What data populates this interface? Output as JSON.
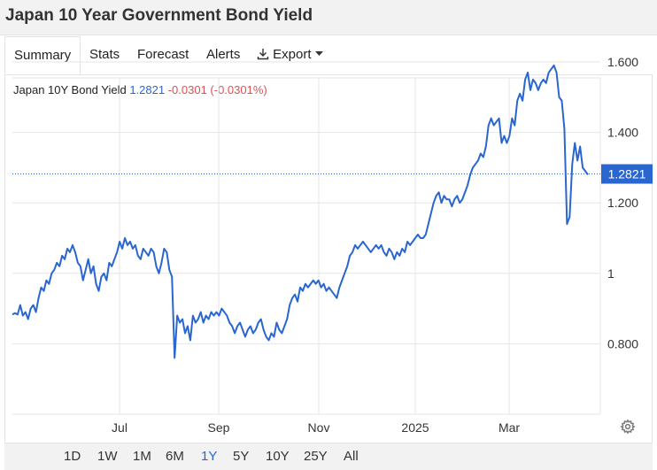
{
  "page_title": "Japan 10 Year Government Bond Yield",
  "tabs": [
    {
      "label": "Summary",
      "active": true
    },
    {
      "label": "Stats",
      "active": false
    },
    {
      "label": "Forecast",
      "active": false
    },
    {
      "label": "Alerts",
      "active": false
    },
    {
      "label": "Export",
      "active": false,
      "icon": "download-icon"
    }
  ],
  "legend": {
    "name": "Japan 10Y Bond Yield",
    "value": "1.2821",
    "change": "-0.0301 (-0.0301%)"
  },
  "ranges": [
    {
      "label": "1D",
      "active": false
    },
    {
      "label": "1W",
      "active": false
    },
    {
      "label": "1M",
      "active": false
    },
    {
      "label": "6M",
      "active": false
    },
    {
      "label": "1Y",
      "active": true
    },
    {
      "label": "5Y",
      "active": false
    },
    {
      "label": "10Y",
      "active": false
    },
    {
      "label": "25Y",
      "active": false
    },
    {
      "label": "All",
      "active": false
    }
  ],
  "colors": {
    "line": "#2a66cf",
    "negative": "#e05050",
    "grid": "#e6e6e6"
  },
  "chart_data": {
    "type": "line",
    "x_tick_labels": [
      "Jul",
      "Sep",
      "Nov",
      "2025",
      "Mar"
    ],
    "y_tick_labels": [
      "0.800",
      "1",
      "1.200",
      "1.400",
      "1.600"
    ],
    "y_ticks": [
      0.8,
      1.0,
      1.2,
      1.4,
      1.6
    ],
    "ylim": [
      0.6,
      1.6
    ],
    "current_value_label": "1.2821",
    "current_value": 1.2821,
    "grid": true,
    "series": [
      {
        "values": [
          0.883,
          0.887,
          0.883,
          0.91,
          0.88,
          0.89,
          0.87,
          0.9,
          0.91,
          0.89,
          0.93,
          0.96,
          0.95,
          0.98,
          0.97,
          1.0,
          1.01,
          1.03,
          1.02,
          1.05,
          1.04,
          1.07,
          1.06,
          1.08,
          1.06,
          1.03,
          1.02,
          0.98,
          1.01,
          1.04,
          1.0,
          1.02,
          0.97,
          0.95,
          0.99,
          1.0,
          0.98,
          1.03,
          1.02,
          1.04,
          1.06,
          1.09,
          1.07,
          1.1,
          1.08,
          1.09,
          1.07,
          1.08,
          1.05,
          1.04,
          1.07,
          1.06,
          1.05,
          1.07,
          1.06,
          1.02,
          1.0,
          1.03,
          1.07,
          1.06,
          1.01,
          0.99,
          0.76,
          0.88,
          0.86,
          0.87,
          0.83,
          0.85,
          0.81,
          0.88,
          0.86,
          0.87,
          0.89,
          0.86,
          0.88,
          0.87,
          0.89,
          0.88,
          0.89,
          0.88,
          0.9,
          0.89,
          0.88,
          0.86,
          0.85,
          0.83,
          0.85,
          0.86,
          0.84,
          0.82,
          0.84,
          0.85,
          0.83,
          0.84,
          0.86,
          0.87,
          0.84,
          0.82,
          0.81,
          0.83,
          0.82,
          0.86,
          0.84,
          0.83,
          0.85,
          0.87,
          0.91,
          0.93,
          0.94,
          0.92,
          0.96,
          0.95,
          0.97,
          0.96,
          0.97,
          0.98,
          0.97,
          0.98,
          0.96,
          0.97,
          0.95,
          0.96,
          0.95,
          0.94,
          0.93,
          0.96,
          0.98,
          1.0,
          1.02,
          1.05,
          1.06,
          1.08,
          1.07,
          1.08,
          1.09,
          1.08,
          1.07,
          1.06,
          1.07,
          1.08,
          1.07,
          1.08,
          1.06,
          1.05,
          1.07,
          1.06,
          1.04,
          1.06,
          1.05,
          1.07,
          1.06,
          1.09,
          1.08,
          1.09,
          1.1,
          1.11,
          1.1,
          1.1,
          1.11,
          1.14,
          1.17,
          1.2,
          1.22,
          1.23,
          1.2,
          1.22,
          1.21,
          1.21,
          1.19,
          1.21,
          1.22,
          1.2,
          1.21,
          1.23,
          1.25,
          1.28,
          1.3,
          1.31,
          1.32,
          1.34,
          1.33,
          1.36,
          1.42,
          1.44,
          1.42,
          1.43,
          1.44,
          1.37,
          1.39,
          1.37,
          1.39,
          1.44,
          1.42,
          1.49,
          1.51,
          1.49,
          1.55,
          1.57,
          1.52,
          1.55,
          1.54,
          1.52,
          1.54,
          1.55,
          1.54,
          1.57,
          1.58,
          1.59,
          1.57,
          1.5,
          1.49,
          1.41,
          1.14,
          1.16,
          1.31,
          1.37,
          1.32,
          1.36,
          1.3,
          1.29,
          1.28
        ]
      }
    ]
  }
}
